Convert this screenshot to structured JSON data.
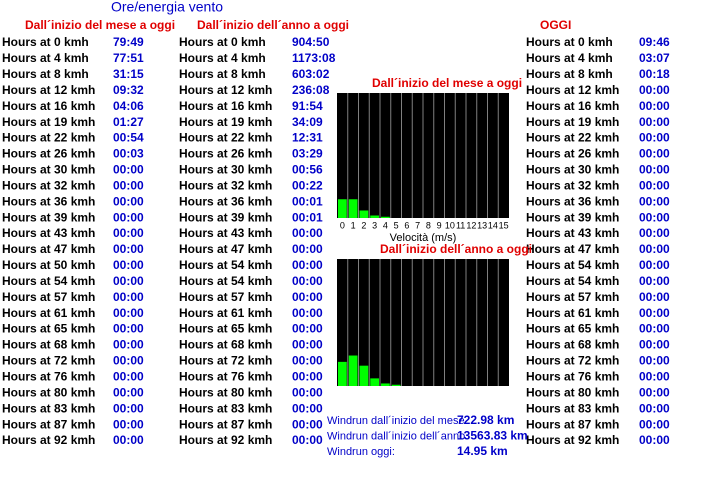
{
  "title": "Ore/energia vento",
  "tables": [
    {
      "header": "Dall´inizio del mese a oggi",
      "labels": [
        "Hours at 0 kmh",
        "Hours at 4 kmh",
        "Hours at 8 kmh",
        "Hours at 12 kmh",
        "Hours at 16 kmh",
        "Hours at 19 kmh",
        "Hours at 22 kmh",
        "Hours at 26 kmh",
        "Hours at 30 kmh",
        "Hours at 32 kmh",
        "Hours at 36 kmh",
        "Hours at 39 kmh",
        "Hours at 43 kmh",
        "Hours at 47 kmh",
        "Hours at 50 kmh",
        "Hours at 54 kmh",
        "Hours at 57 kmh",
        "Hours at 61 kmh",
        "Hours at 65 kmh",
        "Hours at 68 kmh",
        "Hours at 72 kmh",
        "Hours at 76 kmh",
        "Hours at 80 kmh",
        "Hours at 83 kmh",
        "Hours at 87 kmh",
        "Hours at 92 kmh"
      ],
      "values": [
        "79:49",
        "77:51",
        "31:15",
        "09:32",
        "04:06",
        "01:27",
        "00:54",
        "00:03",
        "00:00",
        "00:00",
        "00:00",
        "00:00",
        "00:00",
        "00:00",
        "00:00",
        "00:00",
        "00:00",
        "00:00",
        "00:00",
        "00:00",
        "00:00",
        "00:00",
        "00:00",
        "00:00",
        "00:00",
        "00:00"
      ]
    },
    {
      "header": "Dall´inizio dell´anno a oggi",
      "labels": [
        "Hours at 0 kmh",
        "Hours at 4 kmh",
        "Hours at 8 kmh",
        "Hours at 12 kmh",
        "Hours at 16 kmh",
        "Hours at 19 kmh",
        "Hours at 22 kmh",
        "Hours at 26 kmh",
        "Hours at 30 kmh",
        "Hours at 32 kmh",
        "Hours at 36 kmh",
        "Hours at 39 kmh",
        "Hours at 43 kmh",
        "Hours at 47 kmh",
        "Hours at 54 kmh",
        "Hours at 54 kmh",
        "Hours at 57 kmh",
        "Hours at 61 kmh",
        "Hours at 65 kmh",
        "Hours at 68 kmh",
        "Hours at 72 kmh",
        "Hours at 76 kmh",
        "Hours at 80 kmh",
        "Hours at 83 kmh",
        "Hours at 87 kmh",
        "Hours at 92 kmh"
      ],
      "values": [
        "904:50",
        "1173:08",
        "603:02",
        "236:08",
        "91:54",
        "34:09",
        "12:31",
        "03:29",
        "00:56",
        "00:22",
        "00:01",
        "00:01",
        "00:00",
        "00:00",
        "00:00",
        "00:00",
        "00:00",
        "00:00",
        "00:00",
        "00:00",
        "00:00",
        "00:00",
        "00:00",
        "00:00",
        "00:00",
        "00:00"
      ]
    },
    {
      "header": "OGGI",
      "labels": [
        "Hours at 0 kmh",
        "Hours at 4 kmh",
        "Hours at 8 kmh",
        "Hours at 12 kmh",
        "Hours at 16 kmh",
        "Hours at 19 kmh",
        "Hours at 22 kmh",
        "Hours at 26 kmh",
        "Hours at 30 kmh",
        "Hours at 32 kmh",
        "Hours at 36 kmh",
        "Hours at 39 kmh",
        "Hours at 43 kmh",
        "Hours at 47 kmh",
        "Hours at 54 kmh",
        "Hours at 54 kmh",
        "Hours at 57 kmh",
        "Hours at 61 kmh",
        "Hours at 65 kmh",
        "Hours at 68 kmh",
        "Hours at 72 kmh",
        "Hours at 76 kmh",
        "Hours at 80 kmh",
        "Hours at 83 kmh",
        "Hours at 87 kmh",
        "Hours at 92 kmh"
      ],
      "values": [
        "09:46",
        "03:07",
        "00:18",
        "00:00",
        "00:00",
        "00:00",
        "00:00",
        "00:00",
        "00:00",
        "00:00",
        "00:00",
        "00:00",
        "00:00",
        "00:00",
        "00:00",
        "00:00",
        "00:00",
        "00:00",
        "00:00",
        "00:00",
        "00:00",
        "00:00",
        "00:00",
        "00:00",
        "00:00",
        "00:00"
      ]
    }
  ],
  "charts": [
    {
      "type": "bar",
      "title": "Dall´inizio del mese a oggi",
      "color": "#00ff00",
      "categories": [
        0,
        1,
        2,
        3,
        4,
        5,
        6,
        7,
        8,
        9,
        10,
        11,
        12,
        13,
        14,
        15
      ],
      "xlabel": "Velocità (m/s)",
      "values": [
        15,
        15,
        6,
        2,
        1,
        0,
        0,
        0,
        0,
        0,
        0,
        0,
        0,
        0,
        0,
        0
      ],
      "ylim": [
        0,
        100
      ]
    },
    {
      "type": "bar",
      "title": "Dall´inizio dell´anno a oggi",
      "color": "#00ff00",
      "values": [
        19,
        24,
        16,
        6,
        2,
        1,
        0,
        0,
        0,
        0,
        0,
        0,
        0,
        0,
        0,
        0
      ],
      "ylim": [
        0,
        100
      ]
    }
  ],
  "windrun": [
    {
      "label": "Windrun dall´inizio del mese",
      "value": "722.98 km"
    },
    {
      "label": "Windrun dall´inizio dell´anno",
      "value": "13563.83 km"
    },
    {
      "label": "Windrun oggi:",
      "value": "14.95 km"
    }
  ]
}
